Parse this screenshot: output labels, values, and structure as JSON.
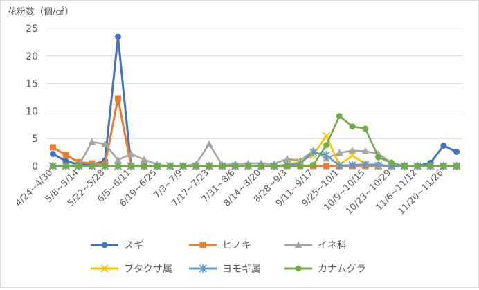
{
  "chart_data": {
    "type": "line",
    "ylabel": "花粉数（個/㎠）",
    "ylim": [
      0,
      25
    ],
    "yticks": [
      0,
      5,
      10,
      15,
      20,
      25
    ],
    "grid": "horizontal",
    "legend": "bottom",
    "categories": [
      "4/24~4/30",
      "5/1~5/7",
      "5/8~5/14",
      "5/15~5/21",
      "5/22~5/28",
      "5/29~6/4",
      "6/5~6/11",
      "6/12~6/18",
      "6/19~6/25",
      "6/26~7/2",
      "7/3~7/9",
      "7/10~7/16",
      "7/17~7/23",
      "7/24~7/30",
      "7/31~8/6",
      "8/7~8/13",
      "8/14~8/20",
      "8/21~8/27",
      "8/28~9/3",
      "9/4~9/10",
      "9/11~9/17",
      "9/18~9/24",
      "9/25~10/1",
      "10/2~10/8",
      "10/9~10/15",
      "10/16~10/22",
      "10/23~10/29",
      "10/30~11/5",
      "11/6~11/12",
      "11/13~11/19",
      "11/20~11/26",
      "11/27~12/3"
    ],
    "xtick_labels": [
      "4/24~4/30",
      "5/8~5/14",
      "5/22~5/28",
      "6/5~6/11",
      "6/19~6/25",
      "7/3~7/9",
      "7/17~7/23",
      "7/31~8/6",
      "8/14~8/20",
      "8/28~9/3",
      "9/11~9/17",
      "9/25~10/1",
      "10/9~10/15",
      "10/23~10/29",
      "11/6~11/12",
      "11/20~11/26"
    ],
    "xtick_every": 2,
    "series": [
      {
        "name": "スギ",
        "color": "#4472c4",
        "marker": "circle",
        "values": [
          2.2,
          0.9,
          0.3,
          0.2,
          1.0,
          23.5,
          0.1,
          0,
          0,
          0,
          0,
          0,
          0,
          0,
          0,
          0,
          0,
          0,
          0,
          0,
          0,
          0,
          0,
          0.1,
          0.3,
          0.2,
          0,
          0,
          0,
          0.6,
          3.7,
          2.6
        ]
      },
      {
        "name": "ヒノキ",
        "color": "#ed7d31",
        "marker": "square",
        "values": [
          3.4,
          2.0,
          0.7,
          0.5,
          0.3,
          12.3,
          0,
          0,
          0,
          0,
          0,
          0,
          0,
          0,
          0,
          0,
          0,
          0,
          0,
          0,
          0,
          0,
          0,
          0,
          0,
          0,
          0,
          0,
          0,
          0,
          0,
          0
        ]
      },
      {
        "name": "イネ科",
        "color": "#a5a5a5",
        "marker": "triangle",
        "values": [
          0.1,
          0.1,
          0.2,
          4.4,
          4.0,
          1.1,
          2.2,
          1.2,
          0.3,
          0,
          0,
          0.4,
          4.0,
          0.2,
          0.4,
          0.5,
          0.5,
          0.4,
          1.3,
          1.0,
          2.8,
          1.4,
          2.4,
          2.8,
          2.7,
          2.2,
          0.6,
          0,
          0,
          0,
          0,
          0
        ]
      },
      {
        "name": "ブタクサ属",
        "color": "#ffc000",
        "marker": "x",
        "values": [
          0,
          0,
          0,
          0,
          0,
          0,
          0,
          0,
          0,
          0,
          0,
          0,
          0,
          0,
          0,
          0,
          0,
          0,
          0.3,
          0.8,
          2.0,
          5.5,
          0.2,
          1.9,
          0.4,
          0,
          0,
          0,
          0,
          0,
          0,
          0
        ]
      },
      {
        "name": "ヨモギ属",
        "color": "#5b9bd5",
        "marker": "asterisk",
        "values": [
          0,
          0,
          0,
          0,
          0,
          0,
          0,
          0,
          0,
          0,
          0,
          0,
          0,
          0,
          0,
          0,
          0,
          0,
          0.2,
          0.5,
          2.5,
          2.0,
          0.1,
          0.2,
          0.3,
          0.1,
          0,
          0,
          0,
          0,
          0,
          0
        ]
      },
      {
        "name": "カナムグラ",
        "color": "#70ad47",
        "marker": "circle",
        "values": [
          0,
          0,
          0,
          0,
          0,
          0,
          0,
          0,
          0,
          0,
          0,
          0,
          0,
          0,
          0,
          0,
          0,
          0,
          0,
          0,
          0.2,
          3.8,
          9.1,
          7.2,
          6.8,
          1.6,
          0.6,
          0,
          0,
          0,
          0,
          0
        ]
      }
    ]
  }
}
